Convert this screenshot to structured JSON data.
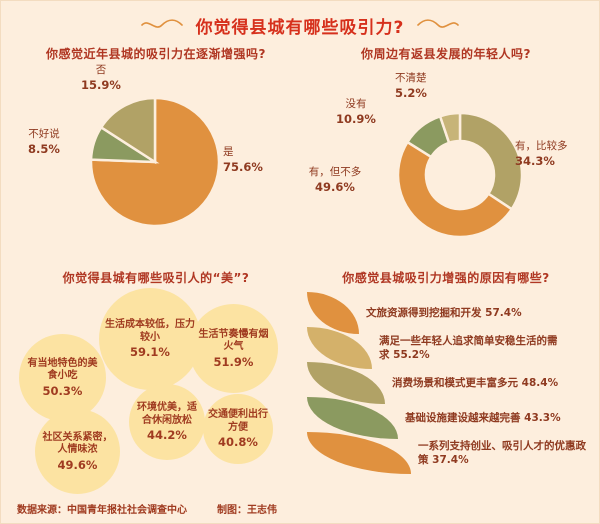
{
  "page": {
    "title": "你觉得县城有哪些吸引力?",
    "footer": {
      "source": "数据来源：中国青年报社社会调查中心",
      "credit": "制图：王志伟"
    }
  },
  "colors": {
    "background": "#fdeedd",
    "title_red": "#d6301c",
    "section_red": "#b03723",
    "label_red": "#8f3a20",
    "orange": "#e0913f",
    "tan": "#d4b16a",
    "olive": "#b1a266",
    "green": "#8b9a60",
    "bubble_fill": "#fce3a2"
  },
  "chart_data": [
    {
      "type": "pie",
      "title": "你感觉近年县城的吸引力在逐渐增强吗?",
      "slices": [
        {
          "label": "是",
          "value": 75.6,
          "pct": "75.6%",
          "color": "#e0913f"
        },
        {
          "label": "不好说",
          "value": 8.5,
          "pct": "8.5%",
          "color": "#8b9a60"
        },
        {
          "label": "否",
          "value": 15.9,
          "pct": "15.9%",
          "color": "#b1a266"
        }
      ]
    },
    {
      "type": "donut",
      "title": "你周边有返县发展的年轻人吗?",
      "slices": [
        {
          "label": "有，比较多",
          "value": 34.3,
          "pct": "34.3%",
          "color": "#b1a266"
        },
        {
          "label": "有，但不多",
          "value": 49.6,
          "pct": "49.6%",
          "color": "#e0913f"
        },
        {
          "label": "没有",
          "value": 10.9,
          "pct": "10.9%",
          "color": "#8b9a60"
        },
        {
          "label": "不清楚",
          "value": 5.2,
          "pct": "5.2%",
          "color": "#c7b478"
        }
      ]
    },
    {
      "type": "bubble",
      "title": "你觉得县城有哪些吸引人的“美”?",
      "items": [
        {
          "label": "生活成本较低，压力较小",
          "value": 59.1,
          "pct": "59.1%"
        },
        {
          "label": "生活节奏慢有烟火气",
          "value": 51.9,
          "pct": "51.9%"
        },
        {
          "label": "有当地特色的美食小吃",
          "value": 50.3,
          "pct": "50.3%"
        },
        {
          "label": "环境优美，适合休闲放松",
          "value": 44.2,
          "pct": "44.2%"
        },
        {
          "label": "交通便利出行方便",
          "value": 40.8,
          "pct": "40.8%"
        },
        {
          "label": "社区关系紧密，人情味浓",
          "value": 49.6,
          "pct": "49.6%"
        }
      ]
    },
    {
      "type": "bar",
      "title": "你感觉县城吸引力增强的原因有哪些?",
      "items": [
        {
          "label": "文旅资源得到挖掘和开发",
          "value": 57.4,
          "pct": "57.4%",
          "color": "#e0913f"
        },
        {
          "label": "满足一些年轻人追求简单安稳生活的需求",
          "value": 55.2,
          "pct": "55.2%",
          "color": "#d4b16a"
        },
        {
          "label": "消费场景和模式更丰富多元",
          "value": 48.4,
          "pct": "48.4%",
          "color": "#b1a266"
        },
        {
          "label": "基础设施建设越来越完善",
          "value": 43.3,
          "pct": "43.3%",
          "color": "#8b9a60"
        },
        {
          "label": "一系列支持创业、吸引人才的优惠政策",
          "value": 37.4,
          "pct": "37.4%",
          "color": "#e0913f"
        }
      ]
    }
  ]
}
